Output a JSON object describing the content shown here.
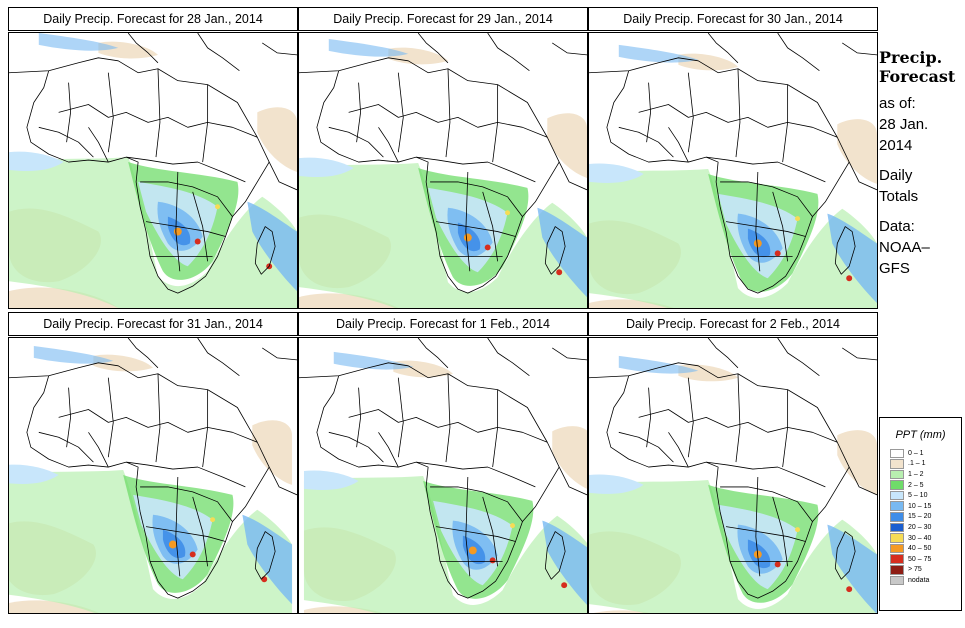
{
  "panels": [
    {
      "title": "Daily Precip. Forecast for  28 Jan., 2014"
    },
    {
      "title": "Daily Precip. Forecast for  29 Jan., 2014"
    },
    {
      "title": "Daily Precip. Forecast for  30 Jan., 2014"
    },
    {
      "title": "Daily Precip. Forecast for  31 Jan., 2014"
    },
    {
      "title": "Daily Precip. Forecast for  1 Feb., 2014"
    },
    {
      "title": "Daily Precip. Forecast for  2 Feb., 2014"
    }
  ],
  "side": {
    "title_line1": "Precip.",
    "title_line2": "Forecast",
    "asof_line1": "as of:",
    "asof_line2": "28 Jan.",
    "asof_line3": "2014",
    "totals_line1": "Daily",
    "totals_line2": "Totals",
    "data_line1": "Data:",
    "data_line2": "NOAA–",
    "data_line3": "GFS"
  },
  "legend": {
    "title": "PPT (mm)",
    "entries": [
      {
        "label": "0 – 1",
        "color": "#ffffff"
      },
      {
        "label": ".1 – 1",
        "color": "#f2e3cd"
      },
      {
        "label": "1 – 2",
        "color": "#b8efb0"
      },
      {
        "label": "2 – 5",
        "color": "#6fdc6a"
      },
      {
        "label": "5 – 10",
        "color": "#c8e6fb"
      },
      {
        "label": "10 – 15",
        "color": "#78b9f2"
      },
      {
        "label": "15 – 20",
        "color": "#3f8de8"
      },
      {
        "label": "20 – 30",
        "color": "#1b5fd0"
      },
      {
        "label": "30 – 40",
        "color": "#f6dc55"
      },
      {
        "label": "40 – 50",
        "color": "#f59a23"
      },
      {
        "label": "50 – 75",
        "color": "#d62d1e"
      },
      {
        "label": "> 75",
        "color": "#8e1d14"
      },
      {
        "label": "nodata",
        "color": "#c8c8c8"
      }
    ]
  }
}
